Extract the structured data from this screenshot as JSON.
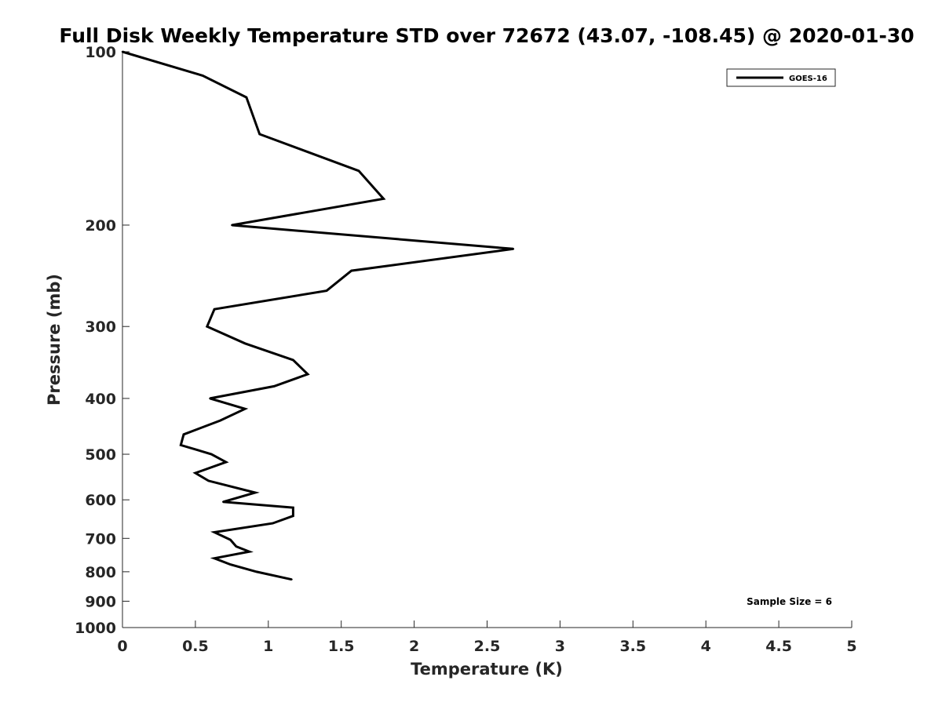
{
  "chart_data": {
    "type": "line",
    "title": "Full Disk Weekly Temperature STD over 72672 (43.07, -108.45) @ 2020-01-30",
    "xlabel": "Temperature (K)",
    "ylabel": "Pressure (mb)",
    "xlim": [
      0,
      5
    ],
    "ylim": [
      1000,
      100
    ],
    "y_scale": "log",
    "y_reversed": true,
    "x_ticks": [
      "0",
      "0.5",
      "1",
      "1.5",
      "2",
      "2.5",
      "3",
      "3.5",
      "4",
      "4.5",
      "5"
    ],
    "y_ticks": [
      "100",
      "200",
      "300",
      "400",
      "500",
      "600",
      "700",
      "800",
      "900",
      "1000"
    ],
    "grid": false,
    "legend_position": "top-right",
    "line_color": "#000000",
    "annotation": "Sample Size = 6",
    "series": [
      {
        "name": "GOES-16",
        "points": [
          {
            "x": 0.0,
            "y": 100
          },
          {
            "x": 0.55,
            "y": 110
          },
          {
            "x": 0.85,
            "y": 120
          },
          {
            "x": 0.94,
            "y": 139
          },
          {
            "x": 1.62,
            "y": 161
          },
          {
            "x": 1.79,
            "y": 180
          },
          {
            "x": 0.75,
            "y": 200
          },
          {
            "x": 2.68,
            "y": 220
          },
          {
            "x": 1.57,
            "y": 240
          },
          {
            "x": 1.4,
            "y": 260
          },
          {
            "x": 0.63,
            "y": 280
          },
          {
            "x": 0.58,
            "y": 300
          },
          {
            "x": 0.84,
            "y": 321
          },
          {
            "x": 1.17,
            "y": 343
          },
          {
            "x": 1.27,
            "y": 363
          },
          {
            "x": 1.04,
            "y": 381
          },
          {
            "x": 0.6,
            "y": 400
          },
          {
            "x": 0.84,
            "y": 417
          },
          {
            "x": 0.67,
            "y": 437
          },
          {
            "x": 0.42,
            "y": 462
          },
          {
            "x": 0.4,
            "y": 482
          },
          {
            "x": 0.61,
            "y": 500
          },
          {
            "x": 0.71,
            "y": 516
          },
          {
            "x": 0.5,
            "y": 539
          },
          {
            "x": 0.59,
            "y": 556
          },
          {
            "x": 0.91,
            "y": 583
          },
          {
            "x": 0.69,
            "y": 605
          },
          {
            "x": 1.17,
            "y": 619
          },
          {
            "x": 1.17,
            "y": 640
          },
          {
            "x": 1.03,
            "y": 659
          },
          {
            "x": 0.63,
            "y": 683
          },
          {
            "x": 0.74,
            "y": 704
          },
          {
            "x": 0.78,
            "y": 723
          },
          {
            "x": 0.87,
            "y": 738
          },
          {
            "x": 0.63,
            "y": 758
          },
          {
            "x": 0.74,
            "y": 777
          },
          {
            "x": 0.92,
            "y": 800
          },
          {
            "x": 1.16,
            "y": 825
          }
        ]
      }
    ]
  }
}
